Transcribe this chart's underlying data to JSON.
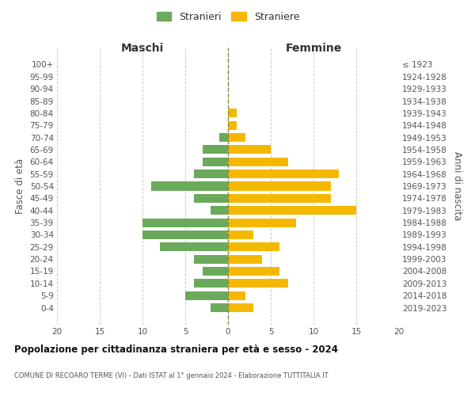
{
  "age_groups": [
    "100+",
    "95-99",
    "90-94",
    "85-89",
    "80-84",
    "75-79",
    "70-74",
    "65-69",
    "60-64",
    "55-59",
    "50-54",
    "45-49",
    "40-44",
    "35-39",
    "30-34",
    "25-29",
    "20-24",
    "15-19",
    "10-14",
    "5-9",
    "0-4"
  ],
  "birth_years": [
    "≤ 1923",
    "1924-1928",
    "1929-1933",
    "1934-1938",
    "1939-1943",
    "1944-1948",
    "1949-1953",
    "1954-1958",
    "1959-1963",
    "1964-1968",
    "1969-1973",
    "1974-1978",
    "1979-1983",
    "1984-1988",
    "1989-1993",
    "1994-1998",
    "1999-2003",
    "2004-2008",
    "2009-2013",
    "2014-2018",
    "2019-2023"
  ],
  "maschi": [
    0,
    0,
    0,
    0,
    0,
    0,
    1,
    3,
    3,
    4,
    9,
    4,
    2,
    10,
    10,
    8,
    4,
    3,
    4,
    5,
    2
  ],
  "femmine": [
    0,
    0,
    0,
    0,
    1,
    1,
    2,
    5,
    7,
    13,
    12,
    12,
    15,
    8,
    3,
    6,
    4,
    6,
    7,
    2,
    3
  ],
  "maschi_color": "#6aaa5a",
  "femmine_color": "#f5b800",
  "background_color": "#ffffff",
  "grid_color": "#cccccc",
  "title": "Popolazione per cittadinanza straniera per età e sesso - 2024",
  "subtitle": "COMUNE DI RECOARO TERME (VI) - Dati ISTAT al 1° gennaio 2024 - Elaborazione TUTTITALIA.IT",
  "xlabel_left": "Maschi",
  "xlabel_right": "Femmine",
  "ylabel_left": "Fasce di età",
  "ylabel_right": "Anni di nascita",
  "legend_maschi": "Stranieri",
  "legend_femmine": "Straniere",
  "xlim": 20
}
